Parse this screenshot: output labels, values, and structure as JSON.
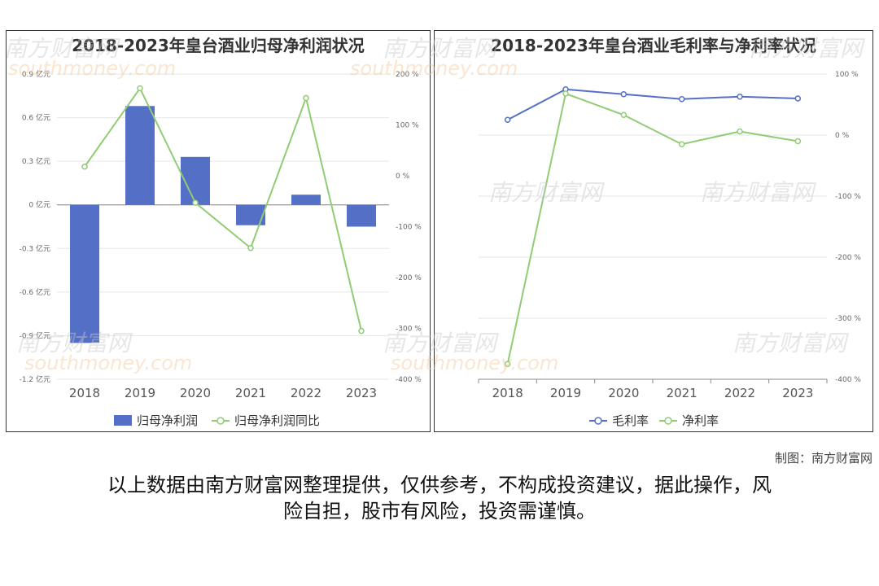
{
  "credit": "制图：南方财富网",
  "disclaimer_line1": "以上数据由南方财富网整理提供，仅供参考，不构成投资建议，据此操作，风",
  "disclaimer_line2": "险自担，股市有风险，投资需谨慎。",
  "watermark_cn": "南方财富网",
  "watermark_en": "southmoney.com",
  "colors": {
    "bar": "#5470c6",
    "green": "#91cc75",
    "blue": "#5470c6",
    "grid": "#e6e6e6",
    "axis": "#888888"
  },
  "chart_data": [
    {
      "type": "bar",
      "title": "2018-2023年皇台酒业归母净利润状况",
      "categories": [
        "2018",
        "2019",
        "2020",
        "2021",
        "2022",
        "2023"
      ],
      "series": [
        {
          "name": "归母净利润",
          "type": "bar",
          "axis": "left",
          "values": [
            -0.95,
            0.68,
            0.33,
            -0.14,
            0.07,
            -0.15
          ]
        },
        {
          "name": "归母净利润同比",
          "type": "line",
          "axis": "right",
          "values": [
            18,
            172,
            -53,
            -142,
            153,
            -305
          ]
        }
      ],
      "y_left": {
        "min": -1.2,
        "max": 0.9,
        "ticks": [
          0.9,
          0.6,
          0.3,
          0,
          -0.3,
          -0.6,
          -0.9,
          -1.2
        ],
        "tick_labels": [
          "0.9 亿元",
          "0.6 亿元",
          "0.3 亿元",
          "0 亿元",
          "-0.3 亿元",
          "-0.6 亿元",
          "-0.9 亿元",
          "-1.2 亿元"
        ]
      },
      "y_right": {
        "min": -400,
        "max": 200,
        "ticks": [
          200,
          100,
          0,
          -100,
          -200,
          -300,
          -400
        ],
        "tick_labels": [
          "200 %",
          "100 %",
          "0 %",
          "-100 %",
          "-200 %",
          "-300 %",
          "-400 %"
        ]
      },
      "legend": [
        "归母净利润",
        "归母净利润同比"
      ],
      "legend_position": "bottom"
    },
    {
      "type": "line",
      "title": "2018-2023年皇台酒业毛利率与净利率状况",
      "categories": [
        "2018",
        "2019",
        "2020",
        "2021",
        "2022",
        "2023"
      ],
      "series": [
        {
          "name": "毛利率",
          "values": [
            25,
            75,
            67,
            59,
            63,
            60
          ]
        },
        {
          "name": "净利率",
          "values": [
            -375,
            68,
            33,
            -15,
            6,
            -10
          ]
        }
      ],
      "y": {
        "min": -400,
        "max": 100,
        "ticks": [
          100,
          0,
          -100,
          -200,
          -300,
          -400
        ],
        "tick_labels": [
          "100 %",
          "0 %",
          "-100 %",
          "-200 %",
          "-300 %",
          "-400 %"
        ]
      },
      "legend": [
        "毛利率",
        "净利率"
      ],
      "legend_position": "bottom"
    }
  ]
}
